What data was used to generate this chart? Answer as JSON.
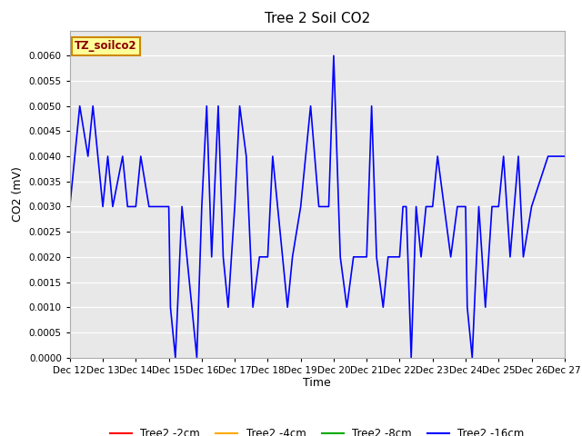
{
  "title": "Tree 2 Soil CO2",
  "ylabel": "CO2 (mV)",
  "xlabel": "Time",
  "xlim_days": [
    12,
    27
  ],
  "ylim": [
    0.0,
    0.0065
  ],
  "yticks": [
    0.0,
    0.0005,
    0.001,
    0.0015,
    0.002,
    0.0025,
    0.003,
    0.0035,
    0.004,
    0.0045,
    0.005,
    0.0055,
    0.006
  ],
  "xtick_positions": [
    12,
    13,
    14,
    15,
    16,
    17,
    18,
    19,
    20,
    21,
    22,
    23,
    24,
    25,
    26,
    27
  ],
  "xtick_labels": [
    "Dec 12",
    "Dec 13",
    "Dec 14",
    "Dec 15",
    "Dec 16",
    "Dec 17",
    "Dec 18",
    "Dec 19",
    "Dec 20",
    "Dec 21",
    "Dec 22",
    "Dec 23",
    "Dec 24",
    "Dec 25",
    "Dec 26",
    "Dec 27"
  ],
  "legend_labels": [
    "Tree2 -2cm",
    "Tree2 -4cm",
    "Tree2 -8cm",
    "Tree2 -16cm"
  ],
  "legend_colors": [
    "#ff0000",
    "#ffaa00",
    "#00aa00",
    "#0000ff"
  ],
  "annotation_text": "TZ_soilco2",
  "annotation_fg": "#8b0000",
  "annotation_bg": "#ffff99",
  "annotation_border": "#cc8800",
  "background_color": "#e8e8e8",
  "line_color": "#0000ff",
  "line_width": 1.2,
  "blue_x": [
    12.0,
    12.0,
    12.15,
    12.15,
    12.3,
    12.3,
    12.55,
    12.55,
    12.7,
    12.7,
    12.85,
    12.85,
    13.0,
    13.0,
    13.15,
    13.15,
    13.3,
    13.3,
    13.6,
    13.6,
    13.75,
    13.75,
    14.0,
    14.0,
    14.15,
    14.15,
    14.4,
    14.4,
    14.75,
    14.75,
    15.0,
    15.0,
    15.05,
    15.05,
    15.2,
    15.2,
    15.4,
    15.4,
    15.55,
    15.55,
    15.7,
    15.7,
    15.85,
    15.85,
    16.0,
    16.0,
    16.15,
    16.15,
    16.3,
    16.3,
    16.5,
    16.5,
    16.65,
    16.65,
    16.8,
    16.8,
    17.0,
    17.0,
    17.15,
    17.15,
    17.35,
    17.35,
    17.55,
    17.55,
    17.75,
    17.75,
    18.0,
    18.0,
    18.15,
    18.15,
    18.3,
    18.3,
    18.6,
    18.6,
    18.75,
    18.75,
    19.0,
    19.0,
    19.15,
    19.15,
    19.3,
    19.3,
    19.55,
    19.55,
    19.7,
    19.7,
    19.85,
    19.85,
    20.0,
    20.0,
    20.05,
    20.05,
    20.2,
    20.2,
    20.4,
    20.4,
    20.6,
    20.6,
    20.8,
    20.8,
    21.0,
    21.0,
    21.15,
    21.15,
    21.3,
    21.3,
    21.5,
    21.5,
    21.65,
    21.65,
    22.0,
    22.0,
    22.1,
    22.1,
    22.2,
    22.2,
    22.35,
    22.35,
    22.5,
    22.5,
    22.65,
    22.65,
    22.8,
    22.8,
    23.0,
    23.0,
    23.15,
    23.15,
    23.35,
    23.35,
    23.55,
    23.55,
    23.75,
    23.75,
    24.0,
    24.0,
    24.05,
    24.05,
    24.2,
    24.2,
    24.4,
    24.4,
    24.6,
    24.6,
    24.8,
    24.8,
    25.0,
    25.0,
    25.15,
    25.15,
    25.35,
    25.35,
    25.6,
    25.6,
    25.75,
    25.75,
    26.0,
    26.0,
    26.5,
    26.5,
    27.0
  ],
  "blue_y": [
    0.003,
    0.003,
    0.004,
    0.004,
    0.005,
    0.005,
    0.004,
    0.004,
    0.005,
    0.005,
    0.004,
    0.004,
    0.003,
    0.003,
    0.004,
    0.004,
    0.003,
    0.003,
    0.004,
    0.004,
    0.003,
    0.003,
    0.003,
    0.003,
    0.004,
    0.004,
    0.003,
    0.003,
    0.003,
    0.003,
    0.003,
    0.003,
    0.001,
    0.001,
    0.0,
    0.0,
    0.003,
    0.003,
    0.002,
    0.002,
    0.001,
    0.001,
    0.0,
    0.0,
    0.003,
    0.003,
    0.005,
    0.005,
    0.002,
    0.002,
    0.005,
    0.005,
    0.002,
    0.002,
    0.001,
    0.001,
    0.003,
    0.003,
    0.005,
    0.005,
    0.004,
    0.004,
    0.001,
    0.001,
    0.002,
    0.002,
    0.002,
    0.002,
    0.004,
    0.004,
    0.003,
    0.003,
    0.001,
    0.001,
    0.002,
    0.002,
    0.003,
    0.003,
    0.004,
    0.004,
    0.005,
    0.005,
    0.003,
    0.003,
    0.003,
    0.003,
    0.003,
    0.003,
    0.006,
    0.006,
    0.005,
    0.005,
    0.002,
    0.002,
    0.001,
    0.001,
    0.002,
    0.002,
    0.002,
    0.002,
    0.002,
    0.002,
    0.005,
    0.005,
    0.002,
    0.002,
    0.001,
    0.001,
    0.002,
    0.002,
    0.002,
    0.002,
    0.003,
    0.003,
    0.003,
    0.003,
    0.0,
    0.0,
    0.003,
    0.003,
    0.002,
    0.002,
    0.003,
    0.003,
    0.003,
    0.003,
    0.004,
    0.004,
    0.003,
    0.003,
    0.002,
    0.002,
    0.003,
    0.003,
    0.003,
    0.003,
    0.001,
    0.001,
    0.0,
    0.0,
    0.003,
    0.003,
    0.001,
    0.001,
    0.003,
    0.003,
    0.003,
    0.003,
    0.004,
    0.004,
    0.002,
    0.002,
    0.004,
    0.004,
    0.002,
    0.002,
    0.003,
    0.003,
    0.004,
    0.004,
    0.004
  ]
}
